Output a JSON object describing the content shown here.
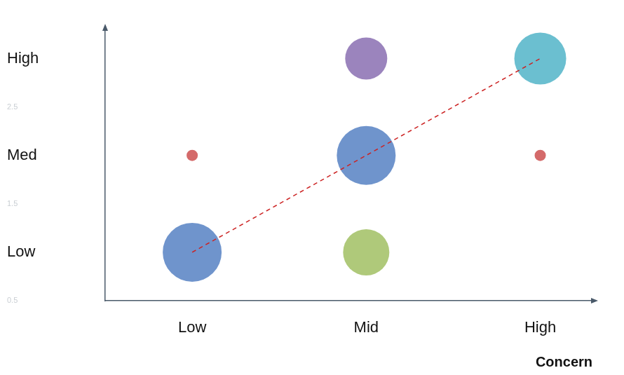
{
  "chart_data": {
    "type": "bubble",
    "x_label": "Concern",
    "series": [
      {
        "type": "bubble",
        "x": [
          1,
          2,
          2,
          2,
          3,
          1,
          3
        ],
        "values": [
          1,
          1,
          2,
          3,
          3,
          2,
          2
        ],
        "sizes": [
          42,
          33,
          42,
          30,
          37,
          8,
          8
        ],
        "colors": [
          "#6f94cc",
          "#afc97a",
          "#6f94cc",
          "#9b84bd",
          "#6bbfd0",
          "#d46a6a",
          "#d46a6a"
        ]
      },
      {
        "type": "line",
        "x": [
          1,
          3
        ],
        "values": [
          1,
          3
        ],
        "color": "#cc2222",
        "line_style": "dashed"
      }
    ],
    "xlim": [
      0.5,
      3.3
    ],
    "xticks": [
      {
        "value": 1,
        "label": "Low"
      },
      {
        "value": 2,
        "label": "Mid"
      },
      {
        "value": 3,
        "label": "High"
      }
    ],
    "ylim": [
      0.5,
      3.3
    ],
    "yticks": [
      0.5,
      {
        "value": 1,
        "label": "Low"
      },
      1.5,
      {
        "value": 2,
        "label": "Med"
      },
      2.5,
      {
        "value": 3,
        "label": "High"
      }
    ],
    "grid": false
  }
}
